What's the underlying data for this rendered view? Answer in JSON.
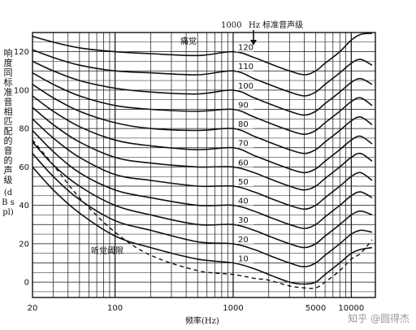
{
  "chart_data": {
    "type": "line",
    "title": "",
    "ylabel": "响度同标准音相匹配的音的声级",
    "ylabel_unit": "(dB spl)",
    "xlabel": "频率(Hz)",
    "x_scale": "log",
    "xlim": [
      20,
      16000
    ],
    "ylim": [
      -8,
      130
    ],
    "grid": true,
    "y_ticks": [
      0,
      20,
      40,
      60,
      80,
      100,
      120
    ],
    "y_tick_labels": [
      "0",
      "20",
      "40",
      "60",
      "80",
      "100",
      "120"
    ],
    "x_ticks": [
      20,
      100,
      1000,
      5000,
      10000
    ],
    "x_tick_labels": [
      "20",
      "100",
      "1000",
      "5000",
      "10000"
    ],
    "header_left": "1000",
    "header_right": "Hz 标准音声级",
    "annotations": {
      "pain": "痛觉",
      "threshold": "听觉阈限"
    },
    "x": [
      20,
      30,
      50,
      100,
      200,
      500,
      1000,
      1500,
      2000,
      3000,
      4000,
      5000,
      6000,
      8000,
      10000,
      12000,
      15000
    ],
    "phon_labels": [
      "120",
      "110",
      "100",
      "90",
      "80",
      "70",
      "60",
      "50",
      "40",
      "30",
      "20",
      "10"
    ],
    "series": [
      {
        "values": [
          128,
          125,
          122,
          120,
          119,
          118,
          120,
          117,
          114,
          110,
          108,
          110,
          114,
          120,
          126,
          129,
          130
        ]
      },
      {
        "values": [
          121,
          117,
          113,
          110,
          109,
          108,
          110,
          106,
          103,
          99,
          97,
          99,
          103,
          109,
          114,
          116,
          113
        ]
      },
      {
        "values": [
          115,
          110,
          105,
          101,
          99,
          98,
          100,
          96,
          93,
          89,
          87,
          89,
          93,
          99,
          104,
          106,
          103
        ]
      },
      {
        "values": [
          109,
          103,
          97,
          92,
          90,
          89,
          90,
          86,
          83,
          79,
          77,
          79,
          83,
          89,
          94,
          96,
          92
        ]
      },
      {
        "values": [
          103,
          96,
          89,
          83,
          80,
          79,
          80,
          76,
          73,
          69,
          67,
          69,
          73,
          79,
          84,
          86,
          82
        ]
      },
      {
        "values": [
          97,
          89,
          81,
          74,
          71,
          69,
          70,
          66,
          63,
          59,
          57,
          59,
          63,
          69,
          74,
          76,
          72
        ]
      },
      {
        "values": [
          91,
          82,
          73,
          65,
          62,
          60,
          60,
          57,
          54,
          50,
          48,
          50,
          54,
          60,
          65,
          67,
          63
        ]
      },
      {
        "values": [
          85,
          75,
          65,
          56,
          53,
          50,
          50,
          47,
          44,
          40,
          38,
          40,
          44,
          50,
          55,
          57,
          53
        ]
      },
      {
        "values": [
          79,
          68,
          57,
          48,
          44,
          40,
          40,
          37,
          34,
          30,
          28,
          30,
          34,
          40,
          45,
          47,
          44
        ]
      },
      {
        "values": [
          73,
          61,
          50,
          40,
          35,
          30,
          30,
          27,
          24,
          20,
          18,
          20,
          24,
          30,
          35,
          37,
          35
        ]
      },
      {
        "values": [
          67,
          55,
          43,
          32,
          27,
          21,
          20,
          17,
          14,
          10,
          8,
          10,
          14,
          20,
          25,
          27,
          26
        ]
      },
      {
        "values": [
          60,
          48,
          36,
          24,
          18,
          12,
          10,
          7,
          4,
          0,
          -1,
          0,
          4,
          10,
          15,
          17,
          18
        ]
      }
    ],
    "threshold_values": [
      74,
      61,
      44,
      26,
      14,
      6,
      4,
      2,
      1,
      -2,
      -3,
      -3,
      0,
      6,
      12,
      15,
      22
    ]
  },
  "watermark": "知乎 @圆得杰"
}
